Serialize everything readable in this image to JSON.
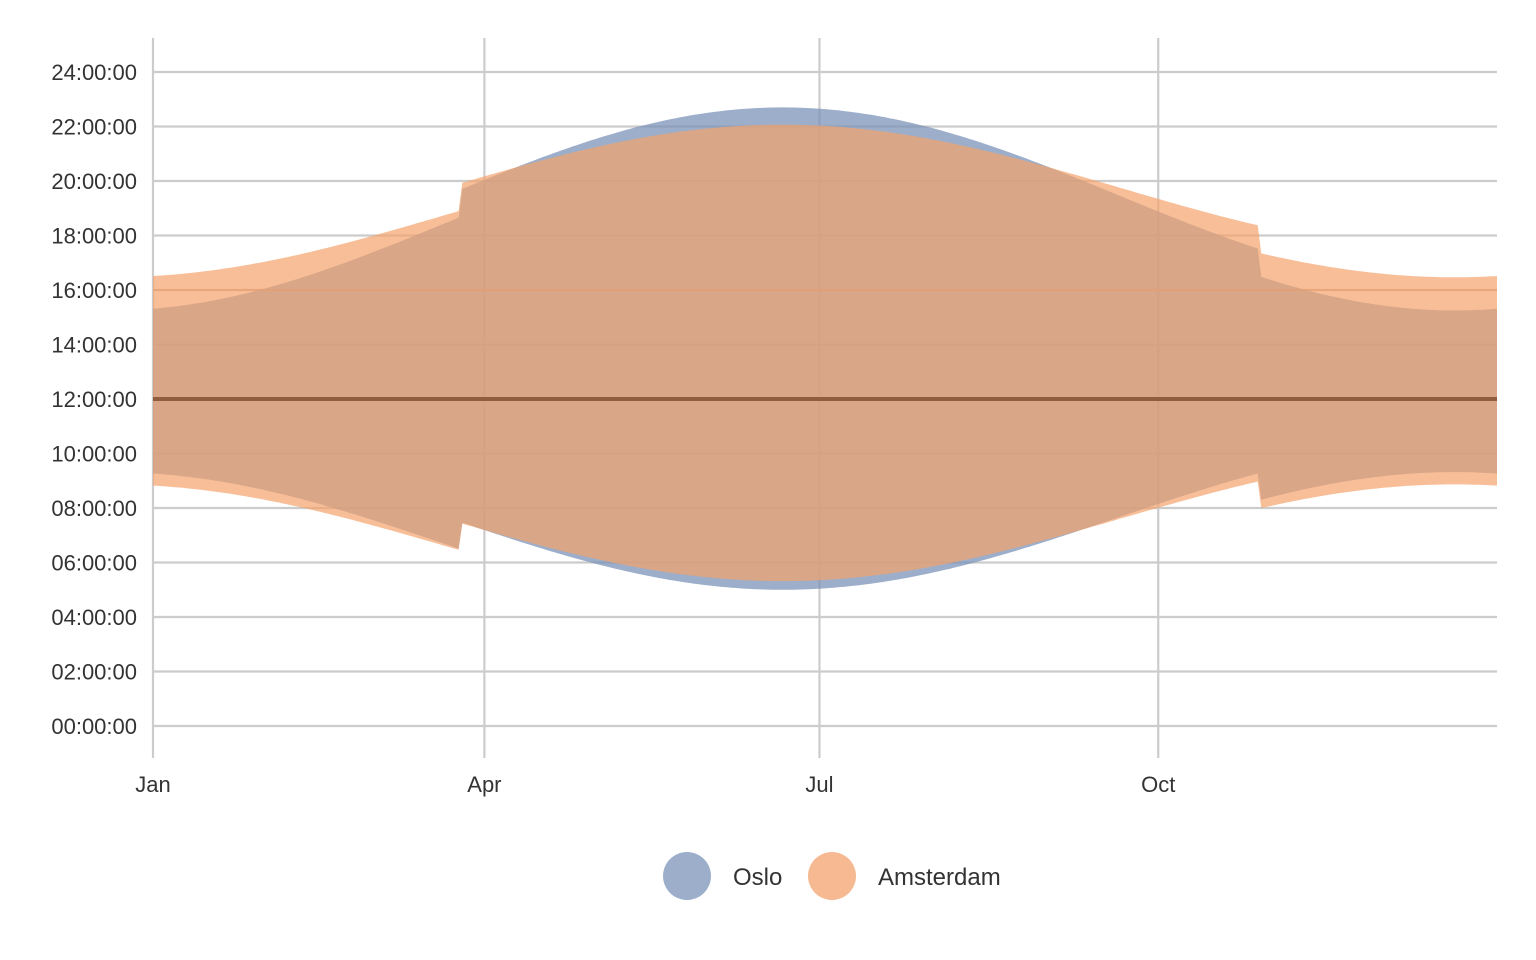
{
  "chart_data": {
    "type": "area",
    "title": "",
    "xlabel": "",
    "ylabel": "",
    "x_domain": [
      "Jan 1",
      "Dec 31"
    ],
    "x_ticks": [
      {
        "label": "Jan",
        "day": 0
      },
      {
        "label": "Apr",
        "day": 90
      },
      {
        "label": "Jul",
        "day": 181
      },
      {
        "label": "Oct",
        "day": 273
      }
    ],
    "ylim": [
      "00:00:00",
      "24:00:00"
    ],
    "y_ticks": [
      "00:00:00",
      "02:00:00",
      "04:00:00",
      "06:00:00",
      "08:00:00",
      "10:00:00",
      "12:00:00",
      "14:00:00",
      "16:00:00",
      "18:00:00",
      "20:00:00",
      "22:00:00",
      "24:00:00"
    ],
    "reference_lines": [
      {
        "y": "12:00:00",
        "color": "#8b5a3c"
      },
      {
        "y": "16:00:00",
        "color": "#e8a070"
      }
    ],
    "dst_transitions": [
      "Mar 26",
      "Oct 29"
    ],
    "grid": true,
    "legend_position": "bottom",
    "series": [
      {
        "name": "Oslo",
        "color": "#7b93b8",
        "sunrise_standard": {
          "min": "09:19:00",
          "max": "04:00:00",
          "extreme_day": "Jun 21"
        },
        "sunset_standard": {
          "min": "15:15:00",
          "max": "21:42:00",
          "extreme_day": "Jun 21"
        },
        "dst_offset_hours": 1
      },
      {
        "name": "Amsterdam",
        "color": "#f4a26c",
        "sunrise_standard": {
          "min": "08:52:00",
          "max": "04:19:00",
          "extreme_day": "Jun 21"
        },
        "sunset_standard": {
          "min": "16:28:00",
          "max": "21:04:00",
          "extreme_day": "Jun 21"
        },
        "dst_offset_hours": 1
      }
    ]
  }
}
